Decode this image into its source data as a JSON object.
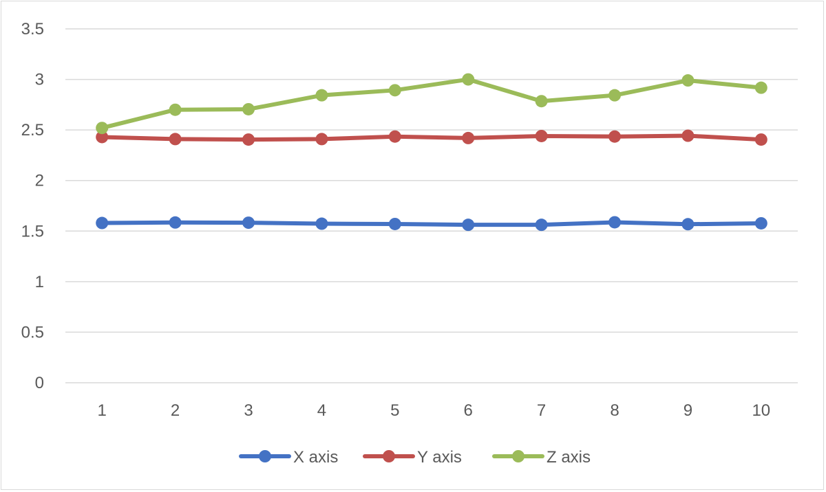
{
  "chart_data": {
    "type": "line",
    "title": "",
    "xlabel": "",
    "ylabel": "",
    "categories": [
      "1",
      "2",
      "3",
      "4",
      "5",
      "6",
      "7",
      "8",
      "9",
      "10"
    ],
    "ylim": [
      0,
      3.5
    ],
    "yticks": [
      "0",
      "0.5",
      "1",
      "1.5",
      "2",
      "2.5",
      "3",
      "3.5"
    ],
    "grid": "horizontal",
    "legend": "bottom",
    "series": [
      {
        "name": "X axis",
        "color": "#4472c4",
        "values": [
          1.58,
          1.585,
          1.583,
          1.573,
          1.57,
          1.562,
          1.562,
          1.587,
          1.568,
          1.577
        ]
      },
      {
        "name": "Y axis",
        "color": "#c0504d",
        "values": [
          2.43,
          2.41,
          2.405,
          2.41,
          2.435,
          2.42,
          2.44,
          2.435,
          2.443,
          2.405
        ]
      },
      {
        "name": "Z axis",
        "color": "#9bbb59",
        "values": [
          2.52,
          2.7,
          2.705,
          2.843,
          2.893,
          3.0,
          2.785,
          2.843,
          2.99,
          2.918
        ]
      }
    ]
  }
}
